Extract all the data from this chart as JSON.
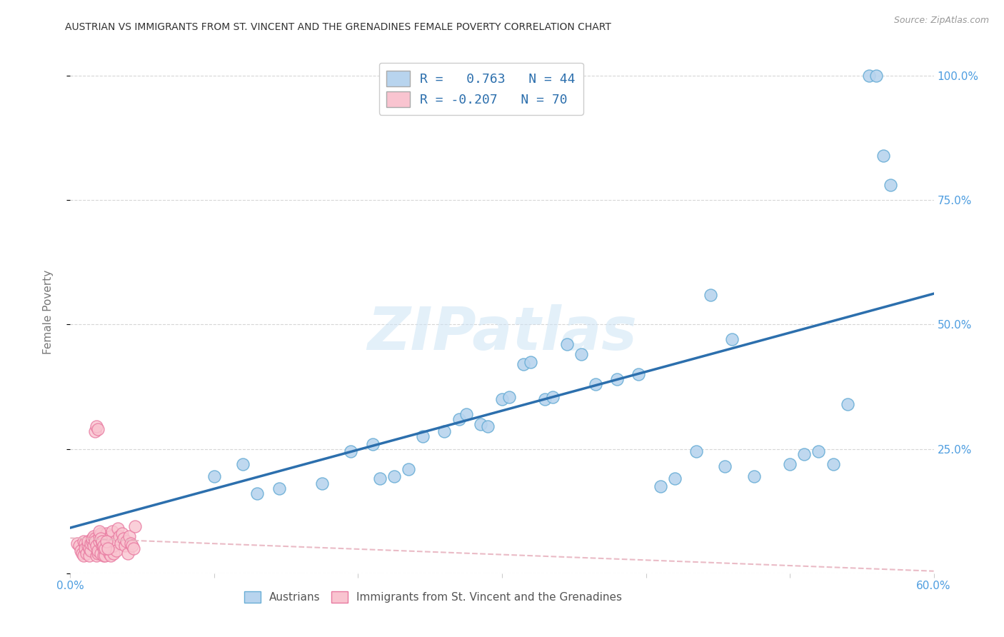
{
  "title": "AUSTRIAN VS IMMIGRANTS FROM ST. VINCENT AND THE GRENADINES FEMALE POVERTY CORRELATION CHART",
  "source": "Source: ZipAtlas.com",
  "ylabel_label": "Female Poverty",
  "xlim": [
    0.0,
    0.6
  ],
  "ylim": [
    0.0,
    1.05
  ],
  "xticks": [
    0.0,
    0.1,
    0.2,
    0.3,
    0.4,
    0.5,
    0.6
  ],
  "xtick_labels": [
    "0.0%",
    "",
    "",
    "",
    "",
    "",
    "60.0%"
  ],
  "yticks": [
    0.0,
    0.25,
    0.5,
    0.75,
    1.0
  ],
  "ytick_labels": [
    "",
    "25.0%",
    "50.0%",
    "75.0%",
    "100.0%"
  ],
  "background_color": "#ffffff",
  "grid_color": "#cccccc",
  "title_color": "#333333",
  "axis_tick_color": "#4d9de0",
  "watermark_text": "ZIPatlas",
  "legend_r1": "R =   0.763   N = 44",
  "legend_r2": "R = -0.207   N = 70",
  "legend_color1": "#b8d4ee",
  "legend_color2": "#f9c4d0",
  "scatter_blue_color": "#b8d4ee",
  "scatter_pink_color": "#f9c4d0",
  "scatter_blue_edgecolor": "#6aaed6",
  "scatter_pink_edgecolor": "#e879a0",
  "regression_blue_color": "#2c6fad",
  "regression_pink_color": "#e8b4c0",
  "blue_points_x": [
    0.285,
    0.1,
    0.12,
    0.13,
    0.145,
    0.175,
    0.195,
    0.21,
    0.215,
    0.225,
    0.235,
    0.245,
    0.26,
    0.27,
    0.275,
    0.285,
    0.29,
    0.3,
    0.305,
    0.315,
    0.32,
    0.33,
    0.335,
    0.345,
    0.355,
    0.365,
    0.38,
    0.395,
    0.41,
    0.42,
    0.435,
    0.445,
    0.455,
    0.46,
    0.475,
    0.5,
    0.51,
    0.52,
    0.53,
    0.54,
    0.555,
    0.56,
    0.565,
    0.57
  ],
  "blue_points_y": [
    1.0,
    0.195,
    0.22,
    0.16,
    0.17,
    0.18,
    0.245,
    0.26,
    0.19,
    0.195,
    0.21,
    0.275,
    0.285,
    0.31,
    0.32,
    0.3,
    0.295,
    0.35,
    0.355,
    0.42,
    0.425,
    0.35,
    0.355,
    0.46,
    0.44,
    0.38,
    0.39,
    0.4,
    0.175,
    0.19,
    0.245,
    0.56,
    0.215,
    0.47,
    0.195,
    0.22,
    0.24,
    0.245,
    0.22,
    0.34,
    1.0,
    1.0,
    0.84,
    0.78
  ],
  "pink_points_x": [
    0.005,
    0.006,
    0.007,
    0.008,
    0.009,
    0.009,
    0.01,
    0.01,
    0.011,
    0.012,
    0.012,
    0.013,
    0.013,
    0.014,
    0.014,
    0.015,
    0.015,
    0.016,
    0.016,
    0.017,
    0.017,
    0.018,
    0.018,
    0.019,
    0.019,
    0.02,
    0.02,
    0.021,
    0.021,
    0.022,
    0.022,
    0.023,
    0.023,
    0.024,
    0.024,
    0.025,
    0.025,
    0.026,
    0.027,
    0.027,
    0.028,
    0.028,
    0.029,
    0.03,
    0.03,
    0.031,
    0.032,
    0.033,
    0.034,
    0.035,
    0.036,
    0.037,
    0.038,
    0.039,
    0.04,
    0.041,
    0.042,
    0.043,
    0.044,
    0.045,
    0.017,
    0.018,
    0.019,
    0.02,
    0.021,
    0.022,
    0.023,
    0.024,
    0.025,
    0.026
  ],
  "pink_points_y": [
    0.06,
    0.055,
    0.045,
    0.04,
    0.065,
    0.035,
    0.06,
    0.05,
    0.04,
    0.055,
    0.065,
    0.035,
    0.05,
    0.045,
    0.06,
    0.065,
    0.07,
    0.075,
    0.055,
    0.07,
    0.065,
    0.055,
    0.035,
    0.04,
    0.045,
    0.065,
    0.075,
    0.08,
    0.04,
    0.055,
    0.065,
    0.035,
    0.05,
    0.065,
    0.035,
    0.08,
    0.06,
    0.055,
    0.04,
    0.065,
    0.075,
    0.035,
    0.085,
    0.04,
    0.055,
    0.065,
    0.045,
    0.09,
    0.075,
    0.06,
    0.08,
    0.07,
    0.055,
    0.065,
    0.04,
    0.075,
    0.06,
    0.055,
    0.05,
    0.095,
    0.285,
    0.295,
    0.29,
    0.085,
    0.07,
    0.065,
    0.055,
    0.05,
    0.065,
    0.05
  ]
}
